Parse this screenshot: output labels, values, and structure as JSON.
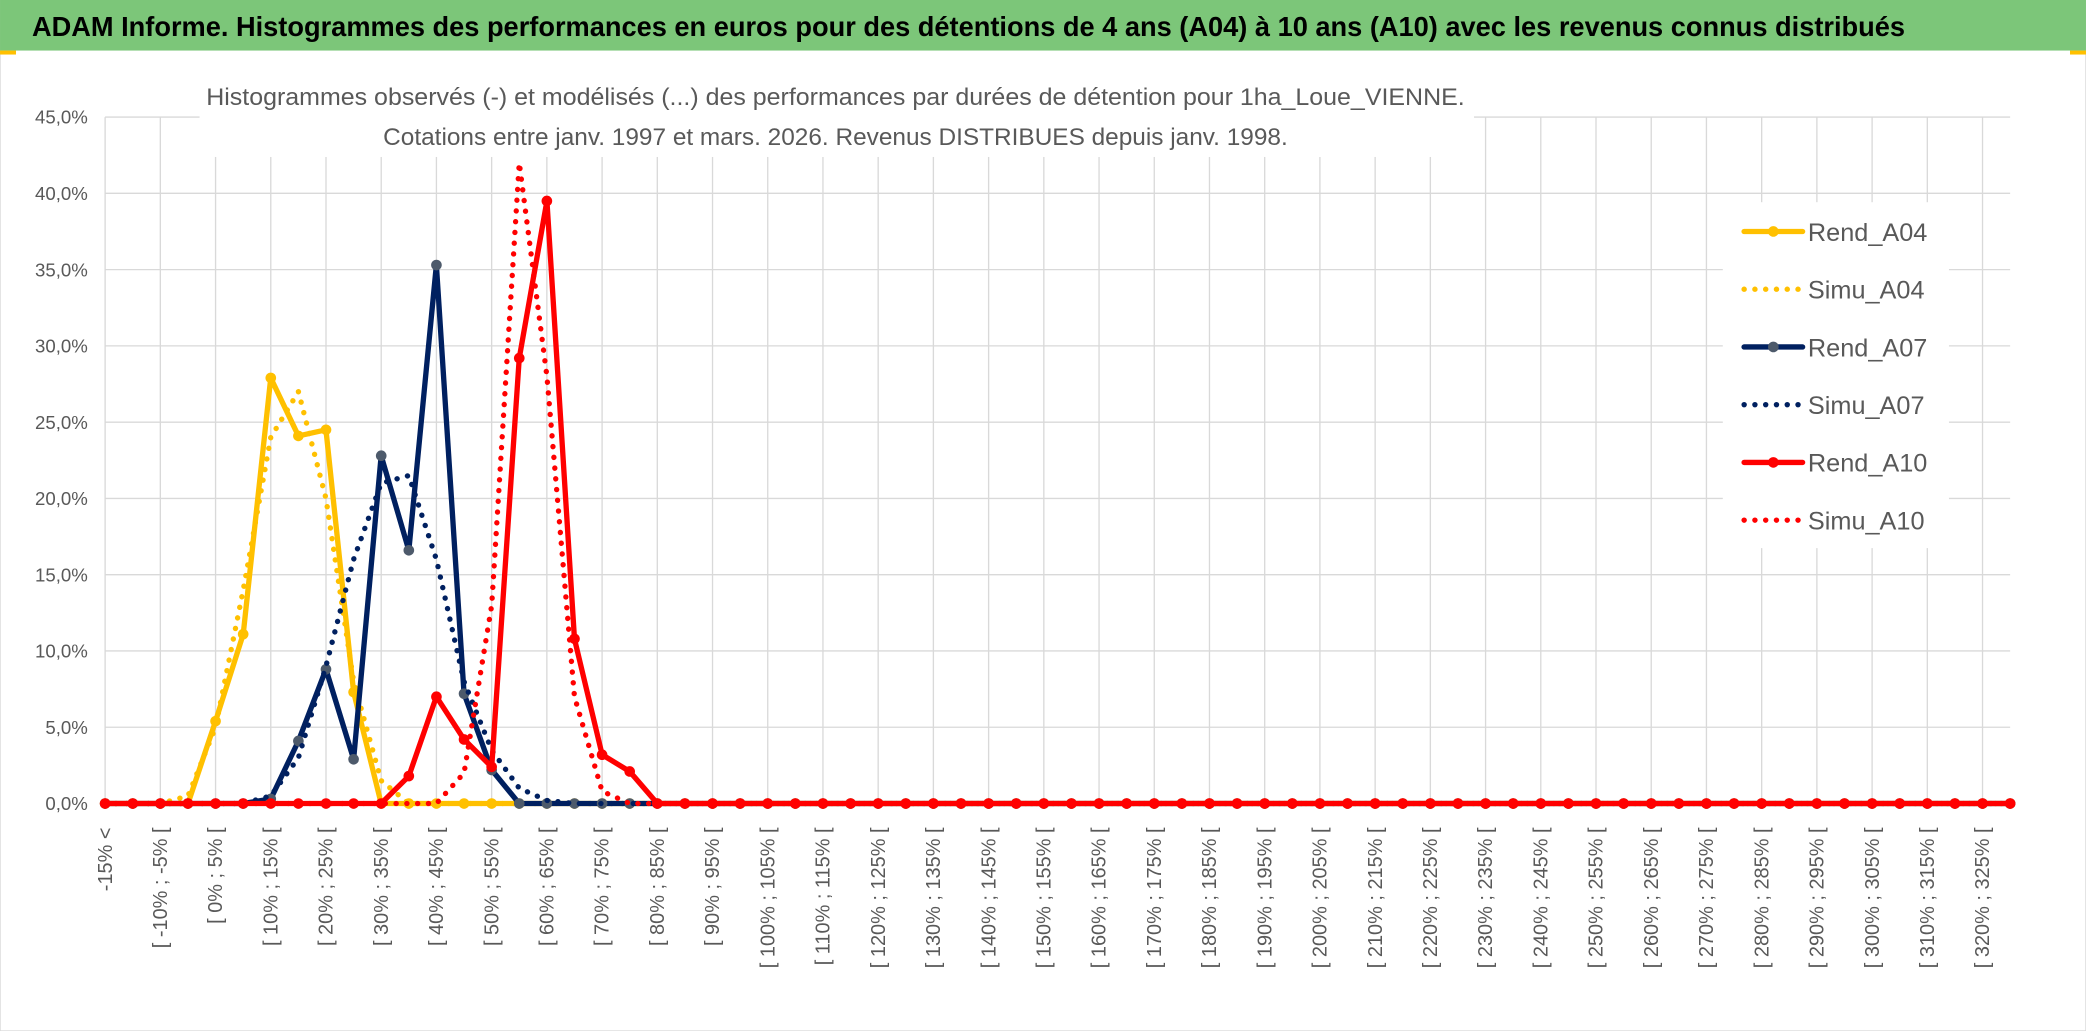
{
  "header": {
    "title": "ADAM Informe. Histogrammes des performances en euros pour des détentions de 4 ans (A04) à 10 ans (A10) avec les revenus connus distribués"
  },
  "chart_data": {
    "type": "line",
    "title": "Histogrammes observés (-) et modélisés (...) des performances par durées de détention pour 1ha_Loue_VIENNE.",
    "subtitle": "Cotations entre janv. 1997 et mars. 2026. Revenus DISTRIBUES depuis janv. 1998.",
    "categories": [
      "-15% <",
      null,
      "[ -10% ; -5% [",
      null,
      "[ 0% ; 5% [",
      null,
      "[ 10% ; 15% [",
      null,
      "[ 20% ; 25% [",
      null,
      "[ 30% ; 35% [",
      null,
      "[ 40% ; 45% [",
      null,
      "[ 50% ; 55% [",
      null,
      "[ 60% ; 65% [",
      null,
      "[ 70% ; 75% [",
      null,
      "[ 80% ; 85% [",
      null,
      "[ 90% ; 95% [",
      null,
      "[ 100% ; 105% [",
      null,
      "[ 110% ; 115% [",
      null,
      "[ 120% ; 125% [",
      null,
      "[ 130% ; 135% [",
      null,
      "[ 140% ; 145% [",
      null,
      "[ 150% ; 155% [",
      null,
      "[ 160% ; 165% [",
      null,
      "[ 170% ; 175% [",
      null,
      "[ 180% ; 185% [",
      null,
      "[ 190% ; 195% [",
      null,
      "[ 200% ; 205% [",
      null,
      "[ 210% ; 215% [",
      null,
      "[ 220% ; 225% [",
      null,
      "[ 230% ; 235% [",
      null,
      "[ 240% ; 245% [",
      null,
      "[ 250% ; 255% [",
      null,
      "[ 260% ; 265% [",
      null,
      "[ 270% ; 275% [",
      null,
      "[ 280% ; 285% [",
      null,
      "[ 290% ; 295% [",
      null,
      "[ 300% ; 305% [",
      null,
      "[ 310% ; 315% [",
      null,
      "[ 320% ; 325% [",
      null
    ],
    "series": [
      {
        "name": "Rend_A04",
        "color": "#ffc000",
        "marker": "#ffc000",
        "style": "solid",
        "values": [
          0,
          0,
          0,
          0,
          5.4,
          11.1,
          27.9,
          24.1,
          24.5,
          7.3,
          0,
          0,
          0,
          0,
          0,
          0,
          0,
          0,
          0,
          0,
          0,
          0,
          0,
          0,
          0,
          0,
          0,
          0,
          0,
          0,
          0,
          0,
          0,
          0,
          0,
          0,
          0,
          0,
          0,
          0,
          0,
          0,
          0,
          0,
          0,
          0,
          0,
          0,
          0,
          0,
          0,
          0,
          0,
          0,
          0,
          0,
          0,
          0,
          0,
          0,
          0,
          0,
          0,
          0,
          0,
          0,
          0,
          0,
          0,
          0
        ]
      },
      {
        "name": "Simu_A04",
        "color": "#ffc000",
        "style": "dotted",
        "values": [
          0,
          0,
          0,
          0.5,
          5,
          14,
          24,
          27,
          20,
          8,
          1.5,
          0,
          0,
          0,
          0,
          0,
          0,
          0,
          0,
          0,
          0,
          0,
          0,
          0,
          0,
          0,
          0,
          0,
          0,
          0,
          0,
          0,
          0,
          0,
          0,
          0,
          0,
          0,
          0,
          0,
          0,
          0,
          0,
          0,
          0,
          0,
          0,
          0,
          0,
          0,
          0,
          0,
          0,
          0,
          0,
          0,
          0,
          0,
          0,
          0,
          0,
          0,
          0,
          0,
          0,
          0,
          0,
          0,
          0,
          0
        ]
      },
      {
        "name": "Rend_A07",
        "color": "#002060",
        "marker": "#4d5a6b",
        "style": "solid",
        "values": [
          0,
          0,
          0,
          0,
          0,
          0,
          0.3,
          4.1,
          8.8,
          2.9,
          22.8,
          16.6,
          35.3,
          7.2,
          2.2,
          0,
          0,
          0,
          0,
          0,
          0,
          0,
          0,
          0,
          0,
          0,
          0,
          0,
          0,
          0,
          0,
          0,
          0,
          0,
          0,
          0,
          0,
          0,
          0,
          0,
          0,
          0,
          0,
          0,
          0,
          0,
          0,
          0,
          0,
          0,
          0,
          0,
          0,
          0,
          0,
          0,
          0,
          0,
          0,
          0,
          0,
          0,
          0,
          0,
          0,
          0,
          0,
          0,
          0,
          0
        ]
      },
      {
        "name": "Simu_A07",
        "color": "#002060",
        "style": "dotted",
        "values": [
          0,
          0,
          0,
          0,
          0,
          0,
          0.5,
          3,
          9,
          16,
          21,
          21.5,
          16,
          8,
          3.5,
          1,
          0.2,
          0,
          0,
          0,
          0,
          0,
          0,
          0,
          0,
          0,
          0,
          0,
          0,
          0,
          0,
          0,
          0,
          0,
          0,
          0,
          0,
          0,
          0,
          0,
          0,
          0,
          0,
          0,
          0,
          0,
          0,
          0,
          0,
          0,
          0,
          0,
          0,
          0,
          0,
          0,
          0,
          0,
          0,
          0,
          0,
          0,
          0,
          0,
          0,
          0,
          0,
          0,
          0,
          0
        ]
      },
      {
        "name": "Rend_A10",
        "color": "#ff0000",
        "marker": "#ff0000",
        "style": "solid",
        "values": [
          0,
          0,
          0,
          0,
          0,
          0,
          0,
          0,
          0,
          0,
          0,
          1.8,
          7.0,
          4.2,
          2.4,
          29.2,
          39.5,
          10.8,
          3.2,
          2.1,
          0,
          0,
          0,
          0,
          0,
          0,
          0,
          0,
          0,
          0,
          0,
          0,
          0,
          0,
          0,
          0,
          0,
          0,
          0,
          0,
          0,
          0,
          0,
          0,
          0,
          0,
          0,
          0,
          0,
          0,
          0,
          0,
          0,
          0,
          0,
          0,
          0,
          0,
          0,
          0,
          0,
          0,
          0,
          0,
          0,
          0,
          0,
          0,
          0,
          0
        ]
      },
      {
        "name": "Simu_A10",
        "color": "#ff0000",
        "style": "dotted",
        "values": [
          0,
          0,
          0,
          0,
          0,
          0,
          0,
          0,
          0,
          0,
          0,
          0,
          0,
          2,
          13,
          42,
          28,
          7,
          0.8,
          0,
          0,
          0,
          0,
          0,
          0,
          0,
          0,
          0,
          0,
          0,
          0,
          0,
          0,
          0,
          0,
          0,
          0,
          0,
          0,
          0,
          0,
          0,
          0,
          0,
          0,
          0,
          0,
          0,
          0,
          0,
          0,
          0,
          0,
          0,
          0,
          0,
          0,
          0,
          0,
          0,
          0,
          0,
          0,
          0,
          0,
          0,
          0,
          0,
          0,
          0
        ]
      }
    ],
    "ylim": [
      0,
      45
    ],
    "yticks": [
      {
        "value": 0,
        "label": "0,0%"
      },
      {
        "value": 5,
        "label": "5,0%"
      },
      {
        "value": 10,
        "label": "10,0%"
      },
      {
        "value": 15,
        "label": "15,0%"
      },
      {
        "value": 20,
        "label": "20,0%"
      },
      {
        "value": 25,
        "label": "25,0%"
      },
      {
        "value": 30,
        "label": "30,0%"
      },
      {
        "value": 35,
        "label": "35,0%"
      },
      {
        "value": 40,
        "label": "40,0%"
      },
      {
        "value": 45,
        "label": "45,0%"
      }
    ],
    "grid": true,
    "legend": "right"
  }
}
